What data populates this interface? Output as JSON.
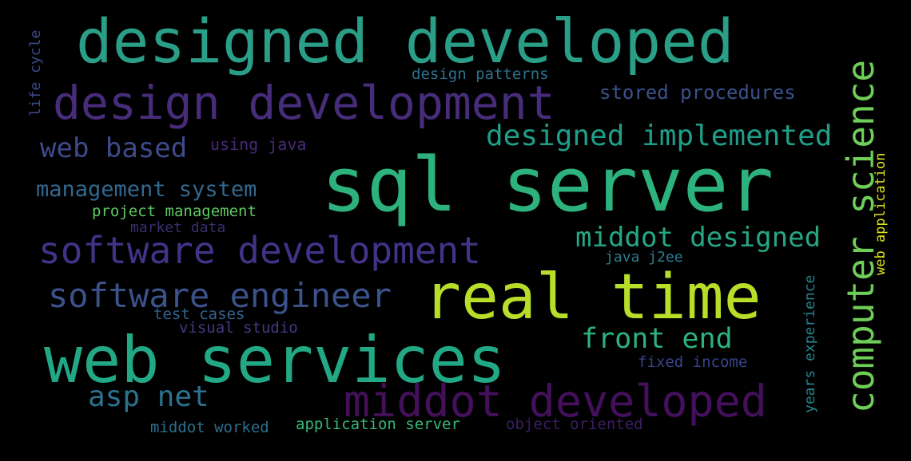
{
  "background": "#000000",
  "words": [
    {
      "id": "designed-developed",
      "text": "designed developed",
      "color": "#2a9e86"
    },
    {
      "id": "design-development",
      "text": "design development",
      "color": "#472c7a"
    },
    {
      "id": "sql-server",
      "text": "sql server",
      "color": "#2db27d"
    },
    {
      "id": "real-time",
      "text": "real time",
      "color": "#b8de29"
    },
    {
      "id": "web-services",
      "text": "web services",
      "color": "#22a884"
    },
    {
      "id": "middot-developed",
      "text": "middot developed",
      "color": "#440f5b"
    },
    {
      "id": "software-development",
      "text": "software development",
      "color": "#433287"
    },
    {
      "id": "software-engineer",
      "text": "software engineer",
      "color": "#3b528b"
    },
    {
      "id": "computer-science",
      "text": "computer science",
      "color": "#6ece58"
    },
    {
      "id": "designed-implemented",
      "text": "designed implemented",
      "color": "#1f9e89"
    },
    {
      "id": "middot-designed",
      "text": "middot designed",
      "color": "#26a784"
    },
    {
      "id": "web-based",
      "text": "web based",
      "color": "#3e4a89"
    },
    {
      "id": "management-system",
      "text": "management system",
      "color": "#31688e"
    },
    {
      "id": "asp-net",
      "text": "asp net",
      "color": "#2c728e"
    },
    {
      "id": "front-end",
      "text": "front end",
      "color": "#2db27d"
    },
    {
      "id": "stored-procedures",
      "text": "stored procedures",
      "color": "#3b518b"
    },
    {
      "id": "design-patterns",
      "text": "design patterns",
      "color": "#2c728e"
    },
    {
      "id": "using-java",
      "text": "using java",
      "color": "#472a79"
    },
    {
      "id": "project-management",
      "text": "project management",
      "color": "#5ec962"
    },
    {
      "id": "market-data",
      "text": "market data",
      "color": "#3a2e6e"
    },
    {
      "id": "java-j2ee",
      "text": "java j2ee",
      "color": "#2b7c8e"
    },
    {
      "id": "test-cases",
      "text": "test cases",
      "color": "#33638d"
    },
    {
      "id": "visual-studio",
      "text": "visual studio",
      "color": "#443a83"
    },
    {
      "id": "fixed-income",
      "text": "fixed income",
      "color": "#39438a"
    },
    {
      "id": "middot-worked",
      "text": "middot worked",
      "color": "#2c6f8e"
    },
    {
      "id": "application-server",
      "text": "application server",
      "color": "#35b779"
    },
    {
      "id": "object-oriented",
      "text": "object oriented",
      "color": "#3c1d62"
    },
    {
      "id": "life-cycle",
      "text": "life cycle",
      "color": "#3b4a89"
    },
    {
      "id": "years-experience",
      "text": "years experience",
      "color": "#25838e"
    },
    {
      "id": "web-application",
      "text": "web application",
      "color": "#dde318"
    }
  ]
}
